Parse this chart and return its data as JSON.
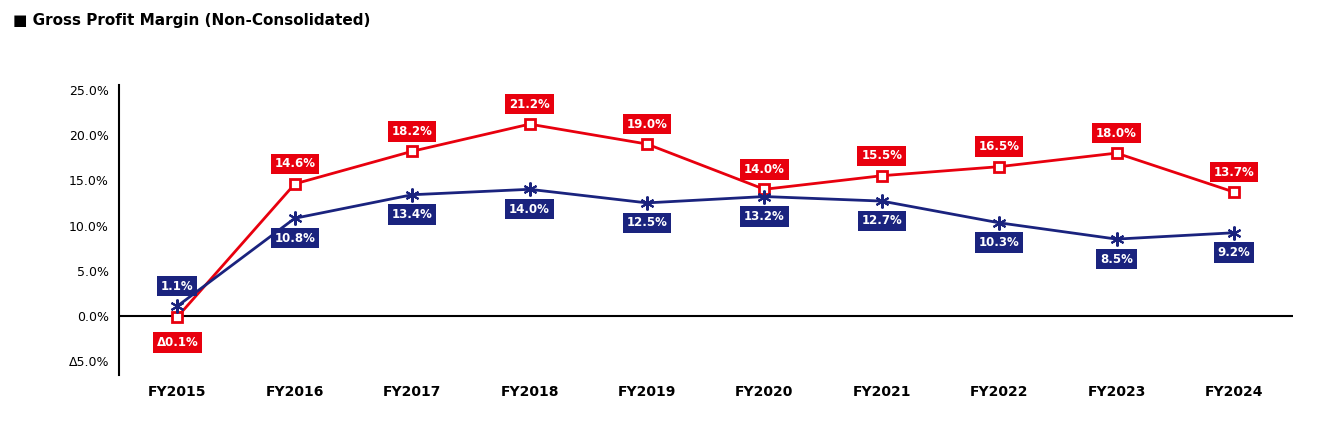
{
  "title": "Gross Profit Margin (Non-Consolidated)",
  "categories": [
    "FY2015",
    "FY2016",
    "FY2017",
    "FY2018",
    "FY2019",
    "FY2020",
    "FY2021",
    "FY2022",
    "FY2023",
    "FY2024"
  ],
  "civil_values": [
    -0.1,
    14.6,
    18.2,
    21.2,
    19.0,
    14.0,
    15.5,
    16.5,
    18.0,
    13.7
  ],
  "building_values": [
    1.1,
    10.8,
    13.4,
    14.0,
    12.5,
    13.2,
    12.7,
    10.3,
    8.5,
    9.2
  ],
  "civil_labels": [
    "Δ0.1%",
    "14.6%",
    "18.2%",
    "21.2%",
    "19.0%",
    "14.0%",
    "15.5%",
    "16.5%",
    "18.0%",
    "13.7%"
  ],
  "building_labels": [
    "1.1%",
    "10.8%",
    "13.4%",
    "14.0%",
    "12.5%",
    "13.2%",
    "12.7%",
    "10.3%",
    "8.5%",
    "9.2%"
  ],
  "civil_color": "#E8000E",
  "building_color": "#1A237E",
  "civil_label_bg": "#E8000E",
  "building_label_bg": "#1A237E",
  "ylim_min": -6.5,
  "ylim_max": 25.5,
  "yticks": [
    -5.0,
    0.0,
    5.0,
    10.0,
    15.0,
    20.0,
    25.0
  ],
  "ytick_labels": [
    "Δ5.0%",
    "0.0%",
    "5.0%",
    "10.0%",
    "15.0%",
    "20.0%",
    "25.0%"
  ],
  "fig_width": 13.19,
  "fig_height": 4.26,
  "civil_label_offsets": [
    -2.8,
    2.2,
    2.2,
    2.2,
    2.2,
    2.2,
    2.2,
    2.2,
    2.2,
    2.2
  ],
  "building_label_offsets": [
    2.2,
    -2.2,
    -2.2,
    -2.2,
    -2.2,
    -2.2,
    -2.2,
    -2.2,
    -2.2,
    -2.2
  ]
}
